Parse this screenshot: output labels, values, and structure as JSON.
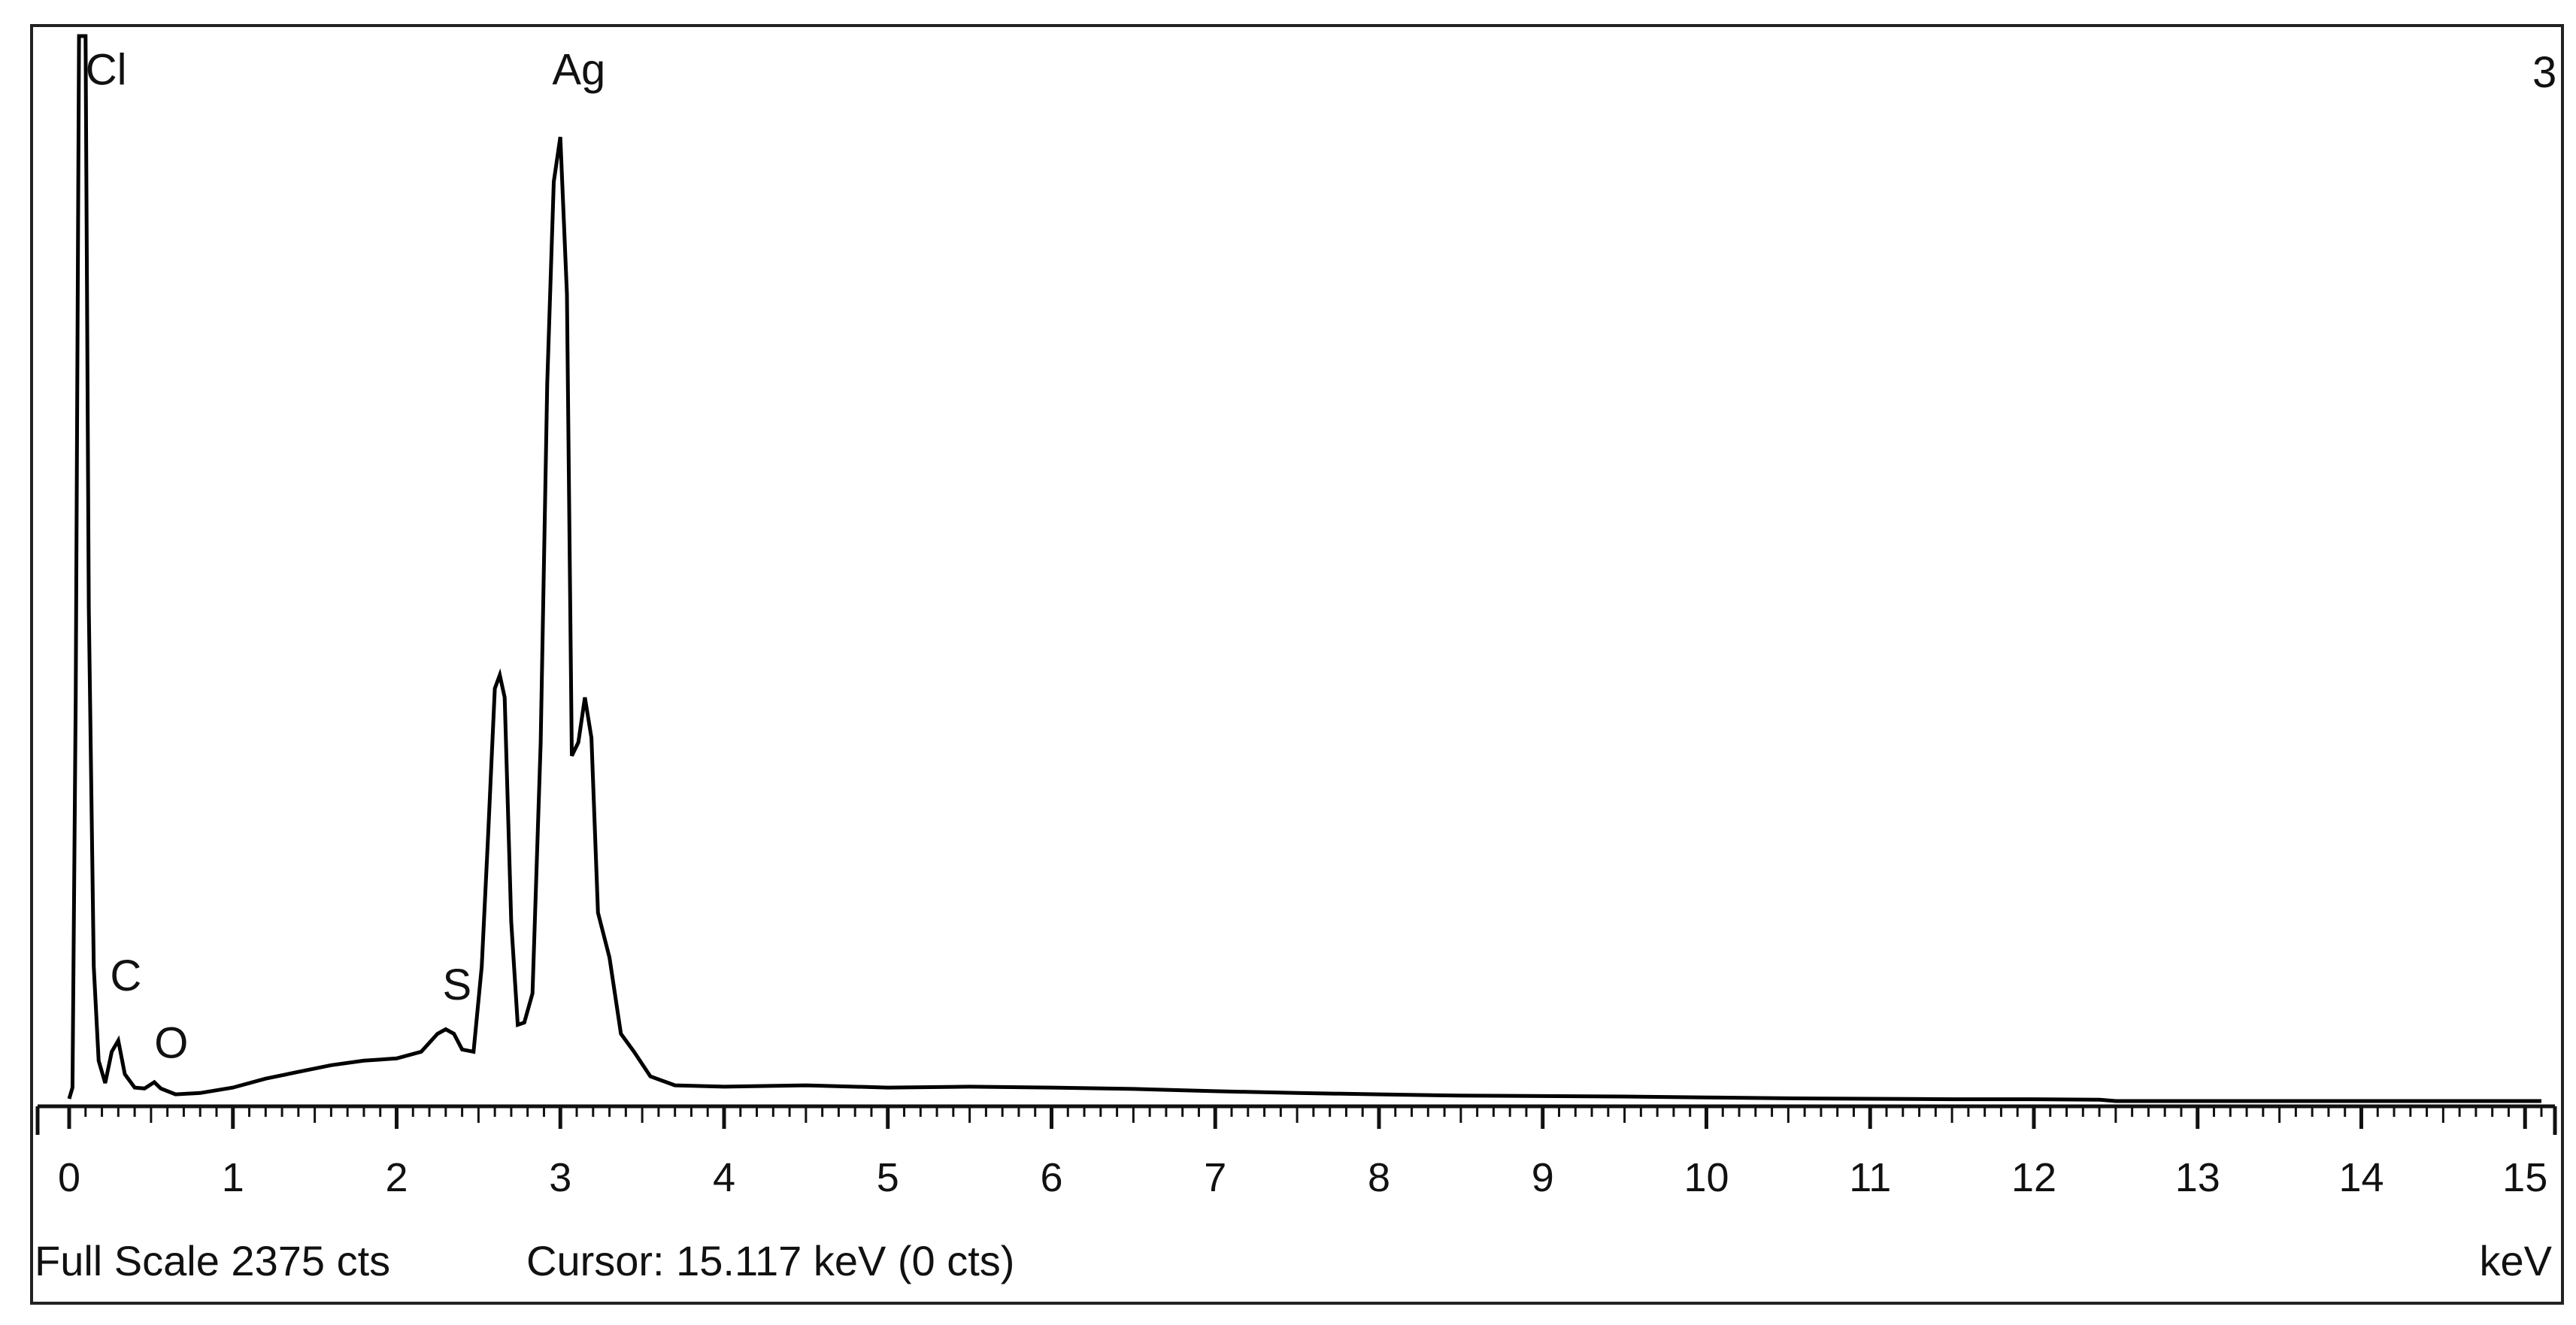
{
  "chart_data": {
    "type": "line",
    "title": "",
    "xlabel": "keV",
    "ylabel": "",
    "xlim": [
      0,
      15.1
    ],
    "ylim": [
      0,
      2375
    ],
    "grid": false,
    "x_ticks": [
      "0",
      "1",
      "2",
      "3",
      "4",
      "5",
      "6",
      "7",
      "8",
      "9",
      "10",
      "11",
      "12",
      "13",
      "14",
      "15"
    ],
    "top_right_marker": "3",
    "peak_labels": [
      {
        "text": "Cl",
        "x": 0.1,
        "y": 2300
      },
      {
        "text": "Ag",
        "x": 2.95,
        "y": 2300
      },
      {
        "text": "C",
        "x": 0.25,
        "y": 280
      },
      {
        "text": "O",
        "x": 0.52,
        "y": 130
      },
      {
        "text": "S",
        "x": 2.28,
        "y": 260
      }
    ],
    "series": [
      {
        "color": "#000000",
        "points": [
          [
            0.0,
            5
          ],
          [
            0.02,
            30
          ],
          [
            0.04,
            900
          ],
          [
            0.06,
            2375
          ],
          [
            0.1,
            2375
          ],
          [
            0.12,
            1100
          ],
          [
            0.15,
            300
          ],
          [
            0.18,
            90
          ],
          [
            0.22,
            40
          ],
          [
            0.26,
            110
          ],
          [
            0.3,
            135
          ],
          [
            0.34,
            60
          ],
          [
            0.4,
            30
          ],
          [
            0.46,
            28
          ],
          [
            0.52,
            42
          ],
          [
            0.56,
            28
          ],
          [
            0.65,
            15
          ],
          [
            0.8,
            18
          ],
          [
            1.0,
            30
          ],
          [
            1.2,
            50
          ],
          [
            1.4,
            65
          ],
          [
            1.6,
            80
          ],
          [
            1.8,
            90
          ],
          [
            2.0,
            95
          ],
          [
            2.15,
            110
          ],
          [
            2.25,
            150
          ],
          [
            2.3,
            160
          ],
          [
            2.35,
            150
          ],
          [
            2.4,
            115
          ],
          [
            2.47,
            110
          ],
          [
            2.52,
            300
          ],
          [
            2.56,
            600
          ],
          [
            2.6,
            920
          ],
          [
            2.63,
            950
          ],
          [
            2.66,
            900
          ],
          [
            2.7,
            400
          ],
          [
            2.74,
            170
          ],
          [
            2.78,
            175
          ],
          [
            2.83,
            240
          ],
          [
            2.88,
            800
          ],
          [
            2.92,
            1600
          ],
          [
            2.96,
            2050
          ],
          [
            3.0,
            2150
          ],
          [
            3.04,
            1800
          ],
          [
            3.07,
            770
          ],
          [
            3.11,
            800
          ],
          [
            3.15,
            900
          ],
          [
            3.19,
            810
          ],
          [
            3.23,
            420
          ],
          [
            3.3,
            320
          ],
          [
            3.37,
            150
          ],
          [
            3.45,
            110
          ],
          [
            3.55,
            55
          ],
          [
            3.7,
            35
          ],
          [
            4.0,
            32
          ],
          [
            4.5,
            35
          ],
          [
            5.0,
            30
          ],
          [
            5.5,
            32
          ],
          [
            6.0,
            30
          ],
          [
            6.5,
            27
          ],
          [
            7.0,
            22
          ],
          [
            7.5,
            18
          ],
          [
            8.0,
            15
          ],
          [
            8.5,
            12
          ],
          [
            9.0,
            11
          ],
          [
            9.5,
            10
          ],
          [
            10.0,
            8
          ],
          [
            10.5,
            6
          ],
          [
            11.0,
            5
          ],
          [
            11.5,
            4
          ],
          [
            12.0,
            4
          ],
          [
            12.4,
            3
          ],
          [
            12.5,
            0
          ],
          [
            15.1,
            0
          ]
        ]
      }
    ]
  },
  "status_bar": {
    "full_scale": "Full Scale 2375 cts",
    "cursor": "Cursor: 15.117 keV (0 cts)",
    "unit": "keV"
  }
}
